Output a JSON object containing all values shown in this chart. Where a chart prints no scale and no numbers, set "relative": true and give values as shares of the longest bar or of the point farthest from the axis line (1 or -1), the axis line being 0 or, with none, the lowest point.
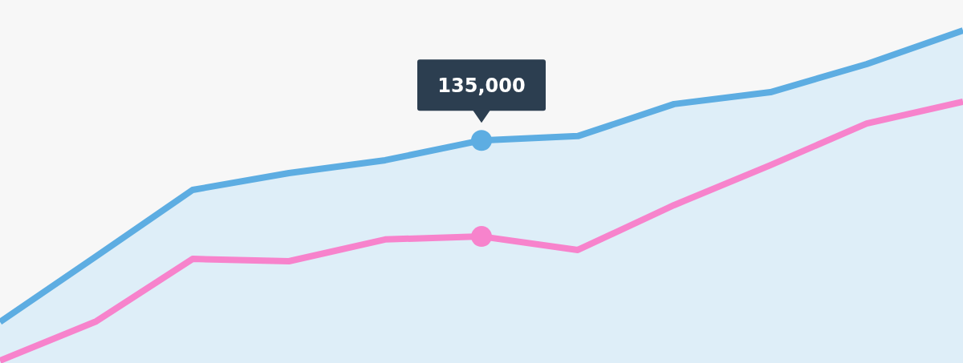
{
  "chart_data": {
    "type": "line",
    "relative": true,
    "categories": [
      null,
      null,
      null,
      null,
      null,
      null,
      null,
      null,
      null,
      null,
      null
    ],
    "annotations": [
      {
        "text": "135,000",
        "y": 0.667
      }
    ],
    "series": [
      {
        "type": "area",
        "color": "#5dade2",
        "values": [
          0.117,
          0.316,
          0.517,
          0.568,
          0.607,
          0.667,
          0.68,
          0.777,
          0.813,
          0.898,
          1
        ]
      },
      {
        "color": "#f783cc",
        "values": [
          0,
          0.119,
          0.308,
          0.301,
          0.367,
          0.376,
          0.335,
          0.471,
          0.592,
          0.718,
          0.784
        ]
      }
    ]
  }
}
